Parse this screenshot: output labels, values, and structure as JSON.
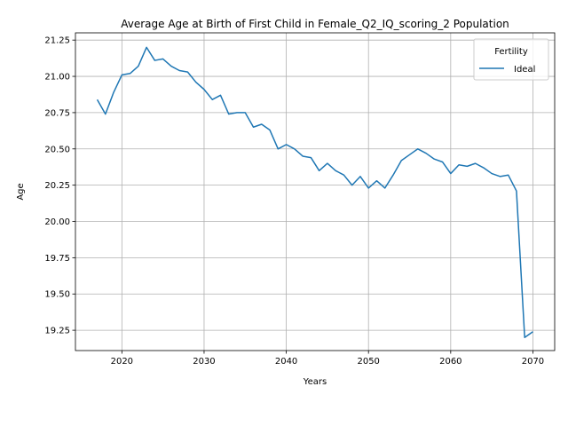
{
  "chart_data": {
    "type": "line",
    "title": "Average Age at Birth of First Child in Female_Q2_IQ_scoring_2 Population",
    "xlabel": "Years",
    "ylabel": "Age",
    "xlim": [
      2014.35,
      2072.65
    ],
    "ylim": [
      19.11,
      21.3
    ],
    "xticks": [
      2020,
      2030,
      2040,
      2050,
      2060,
      2070
    ],
    "yticks": [
      19.25,
      19.5,
      19.75,
      20.0,
      20.25,
      20.5,
      20.75,
      21.0,
      21.25
    ],
    "xtick_labels": [
      "2020",
      "2030",
      "2040",
      "2050",
      "2060",
      "2070"
    ],
    "ytick_labels": [
      "19.25",
      "19.50",
      "19.75",
      "20.00",
      "20.25",
      "20.50",
      "20.75",
      "21.00",
      "21.25"
    ],
    "grid": true,
    "legend": {
      "title": "Fertility",
      "position": "top-right"
    },
    "series": [
      {
        "name": "Ideal",
        "color": "#1f77b4",
        "x": [
          2017,
          2018,
          2019,
          2020,
          2021,
          2022,
          2023,
          2024,
          2025,
          2026,
          2027,
          2028,
          2029,
          2030,
          2031,
          2032,
          2033,
          2034,
          2035,
          2036,
          2037,
          2038,
          2039,
          2040,
          2041,
          2042,
          2043,
          2044,
          2045,
          2046,
          2047,
          2048,
          2049,
          2050,
          2051,
          2052,
          2053,
          2054,
          2055,
          2056,
          2057,
          2058,
          2059,
          2060,
          2061,
          2062,
          2063,
          2064,
          2065,
          2066,
          2067,
          2068,
          2069,
          2070
        ],
        "values": [
          20.84,
          20.74,
          20.89,
          21.01,
          21.02,
          21.07,
          21.2,
          21.11,
          21.12,
          21.07,
          21.04,
          21.03,
          20.96,
          20.91,
          20.84,
          20.87,
          20.74,
          20.75,
          20.75,
          20.65,
          20.67,
          20.63,
          20.5,
          20.53,
          20.5,
          20.45,
          20.44,
          20.35,
          20.4,
          20.35,
          20.32,
          20.25,
          20.31,
          20.23,
          20.28,
          20.23,
          20.32,
          20.42,
          20.46,
          20.5,
          20.47,
          20.43,
          20.41,
          20.33,
          20.39,
          20.38,
          20.4,
          20.37,
          20.33,
          20.31,
          20.32,
          20.21,
          19.2,
          19.24
        ]
      }
    ]
  }
}
